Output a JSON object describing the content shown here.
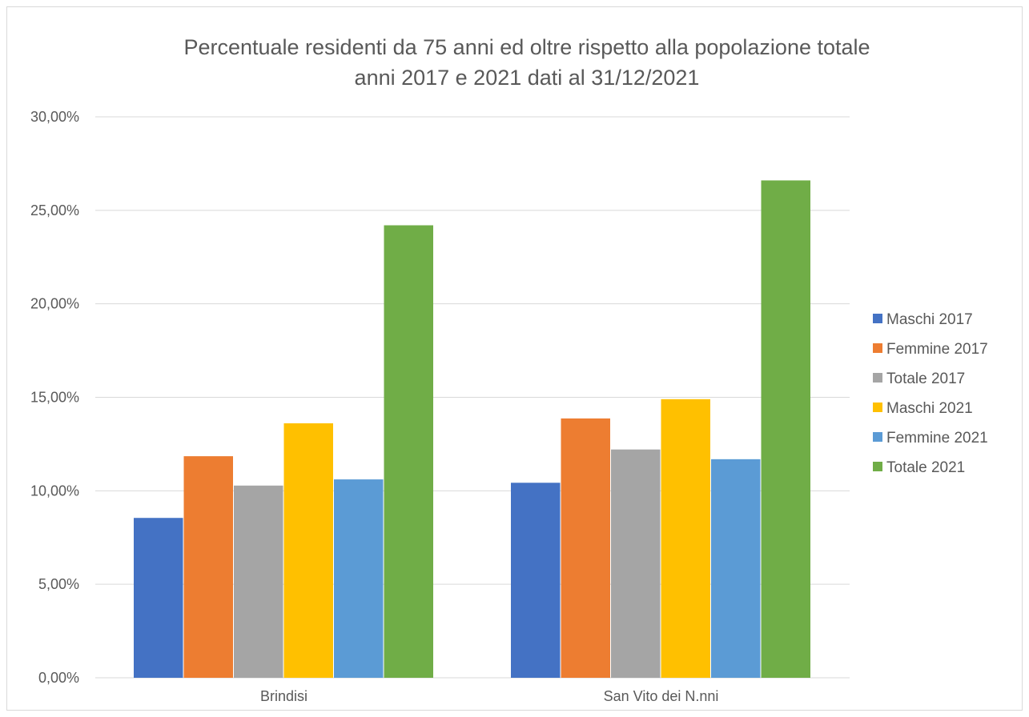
{
  "chart_data": {
    "type": "bar",
    "title": "Percentuale residenti da 75 anni ed oltre rispetto alla popolazione totale",
    "subtitle": "anni 2017 e 2021 dati al 31/12/2021",
    "categories": [
      "Brindisi",
      "San Vito dei N.nni"
    ],
    "series": [
      {
        "name": "Maschi 2017",
        "color": "#4472c4",
        "values": [
          8.55,
          10.43
        ]
      },
      {
        "name": "Femmine 2017",
        "color": "#ed7d31",
        "values": [
          11.85,
          13.87
        ]
      },
      {
        "name": "Totale 2017",
        "color": "#a5a5a5",
        "values": [
          10.28,
          12.21
        ]
      },
      {
        "name": "Maschi 2021",
        "color": "#ffc000",
        "values": [
          13.61,
          14.9
        ]
      },
      {
        "name": "Femmine 2021",
        "color": "#5b9bd5",
        "values": [
          10.61,
          11.69
        ]
      },
      {
        "name": "Totale 2021",
        "color": "#70ad47",
        "values": [
          24.2,
          26.6
        ]
      }
    ],
    "yticks": [
      "0,00%",
      "5,00%",
      "10,00%",
      "15,00%",
      "20,00%",
      "25,00%",
      "30,00%"
    ],
    "ylim": [
      0,
      30
    ],
    "grid": true,
    "legend": "right"
  }
}
